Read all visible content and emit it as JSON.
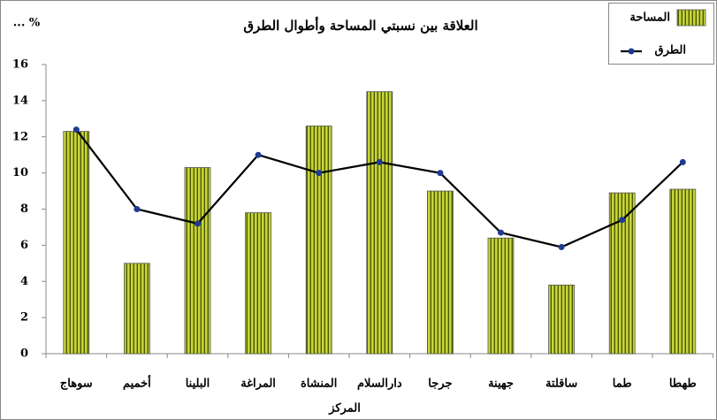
{
  "chart_data": {
    "type": "bar+line",
    "title": "العلاقة بين نسبتي المساحة وأطوال الطرق",
    "y_label": "... %",
    "x_label": "المركز",
    "categories": [
      "سوهاج",
      "أخميم",
      "البلينا",
      "المراغة",
      "المنشاة",
      "دارالسلام",
      "جرجا",
      "جهينة",
      "ساقلتة",
      "طما",
      "طهطا"
    ],
    "series": [
      {
        "name": "المساحة",
        "type": "bar",
        "color": "#c8d43c",
        "stripe_color": "#4a5a00",
        "values": [
          12.3,
          5.0,
          10.3,
          7.8,
          12.6,
          14.5,
          9.0,
          6.4,
          3.8,
          8.9,
          9.1
        ]
      },
      {
        "name": "الطرق",
        "type": "line",
        "color": "#000000",
        "marker_color": "#1f3a93",
        "values": [
          12.4,
          8.0,
          7.2,
          11.0,
          10.0,
          10.6,
          10.0,
          6.7,
          5.9,
          7.4,
          10.6
        ]
      }
    ],
    "ylim": [
      0,
      16
    ],
    "yticks": [
      0,
      2,
      4,
      6,
      8,
      10,
      12,
      14,
      16
    ],
    "grid": false,
    "legend": "top-right"
  }
}
